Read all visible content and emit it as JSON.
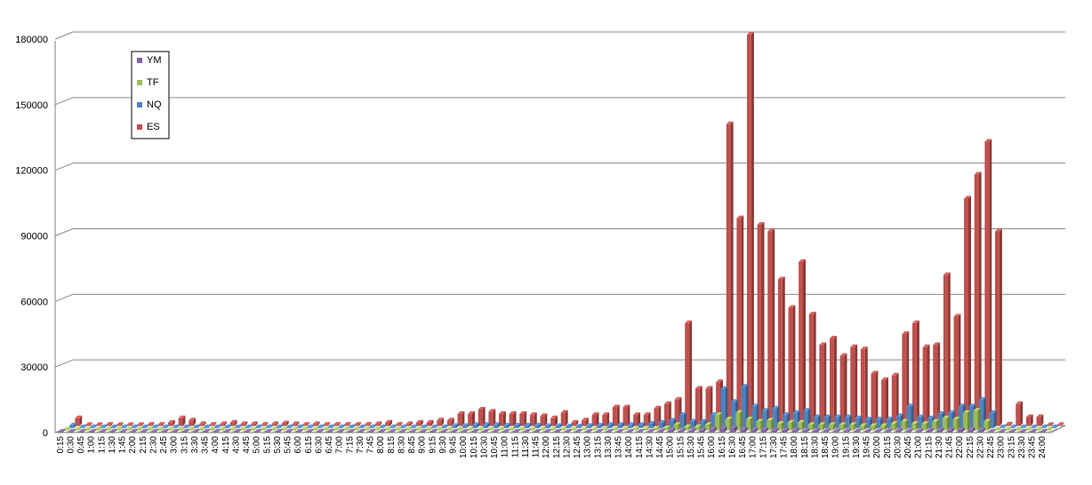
{
  "chart_data": {
    "type": "bar",
    "title": "",
    "xlabel": "",
    "ylabel": "",
    "ylim": [
      0,
      180000
    ],
    "yticks": [
      0,
      30000,
      60000,
      90000,
      120000,
      150000,
      180000
    ],
    "grid": true,
    "legend_position": "top-left",
    "categories": [
      "0:15",
      "0:30",
      "0:45",
      "1:00",
      "1:15",
      "1:30",
      "1:45",
      "2:00",
      "2:15",
      "2:30",
      "2:45",
      "3:00",
      "3:15",
      "3:30",
      "3:45",
      "4:00",
      "4:15",
      "4:30",
      "4:45",
      "5:00",
      "5:15",
      "5:30",
      "5:45",
      "6:00",
      "6:15",
      "6:30",
      "6:45",
      "7:00",
      "7:15",
      "7:30",
      "7:45",
      "8:00",
      "8:15",
      "8:30",
      "8:45",
      "9:00",
      "9:15",
      "9:30",
      "9:45",
      "10:00",
      "10:15",
      "10:30",
      "10:45",
      "11:00",
      "11:15",
      "11:30",
      "11:45",
      "12:00",
      "12:15",
      "12:30",
      "12:45",
      "13:00",
      "13:15",
      "13:30",
      "13:45",
      "14:00",
      "14:15",
      "14:30",
      "14:45",
      "15:00",
      "15:15",
      "15:30",
      "15:45",
      "16:00",
      "16:15",
      "16:30",
      "16:45",
      "17:00",
      "17:15",
      "17:30",
      "17:45",
      "18:00",
      "18:15",
      "18:30",
      "18:45",
      "19:00",
      "19:15",
      "19:30",
      "19:45",
      "20:00",
      "20:15",
      "20:30",
      "20:45",
      "21:00",
      "21:15",
      "21:30",
      "21:45",
      "22:00",
      "22:15",
      "22:30",
      "22:45",
      "23:00",
      "23:15",
      "23:30",
      "23:45",
      "24:00"
    ],
    "series": [
      {
        "name": "YM",
        "color": "#8064A2",
        "values": [
          300,
          50,
          50,
          50,
          50,
          50,
          50,
          50,
          50,
          50,
          100,
          100,
          50,
          50,
          50,
          100,
          50,
          50,
          50,
          100,
          100,
          50,
          50,
          50,
          50,
          50,
          50,
          50,
          50,
          50,
          50,
          50,
          50,
          50,
          50,
          100,
          100,
          200,
          200,
          300,
          300,
          300,
          300,
          300,
          300,
          300,
          300,
          300,
          200,
          200,
          200,
          300,
          400,
          400,
          400,
          400,
          400,
          500,
          600,
          1000,
          800,
          800,
          1000,
          1500,
          1800,
          2000,
          1500,
          1200,
          1200,
          1000,
          1000,
          1000,
          800,
          800,
          700,
          700,
          700,
          600,
          600,
          600,
          700,
          800,
          700,
          700,
          800,
          1000,
          1000,
          1200,
          1200,
          1000,
          50,
          50,
          50,
          50,
          50,
          50
        ]
      },
      {
        "name": "TF",
        "color": "#9BBB59",
        "values": [
          300,
          50,
          50,
          50,
          50,
          50,
          50,
          50,
          50,
          50,
          100,
          100,
          50,
          50,
          50,
          100,
          50,
          50,
          50,
          100,
          100,
          50,
          50,
          50,
          50,
          50,
          50,
          50,
          50,
          50,
          50,
          50,
          50,
          50,
          100,
          100,
          200,
          300,
          300,
          400,
          400,
          400,
          400,
          400,
          400,
          400,
          300,
          300,
          200,
          200,
          300,
          400,
          500,
          500,
          500,
          500,
          600,
          800,
          1000,
          2500,
          1500,
          1500,
          2500,
          7000,
          5000,
          8000,
          5000,
          4000,
          4500,
          3000,
          3500,
          3500,
          2500,
          2500,
          2500,
          2500,
          2500,
          2000,
          2000,
          2000,
          3000,
          4000,
          3000,
          3000,
          4000,
          5500,
          5000,
          8000,
          9000,
          4000,
          50,
          50,
          50,
          50,
          50,
          50
        ]
      },
      {
        "name": "NQ",
        "color": "#4F81BD",
        "values": [
          1200,
          100,
          100,
          100,
          100,
          100,
          100,
          100,
          100,
          200,
          300,
          300,
          100,
          100,
          100,
          300,
          100,
          100,
          100,
          300,
          300,
          100,
          100,
          100,
          100,
          100,
          100,
          100,
          100,
          100,
          100,
          100,
          100,
          200,
          300,
          300,
          500,
          1000,
          1000,
          1500,
          1500,
          1500,
          1200,
          1200,
          1200,
          1200,
          1000,
          1000,
          800,
          800,
          1000,
          1200,
          1500,
          1500,
          1500,
          1500,
          2000,
          2500,
          3500,
          6000,
          3000,
          3000,
          6000,
          18000,
          12000,
          19000,
          10000,
          8000,
          9000,
          6000,
          7000,
          8000,
          5000,
          5000,
          5000,
          5000,
          4500,
          4000,
          4000,
          4000,
          5500,
          10000,
          5000,
          4500,
          6500,
          7000,
          10000,
          10000,
          13000,
          7000,
          100,
          100,
          100,
          100,
          100,
          100
        ]
      },
      {
        "name": "ES",
        "color": "#C0504D",
        "values": [
          3500,
          200,
          200,
          500,
          300,
          200,
          200,
          500,
          500,
          1500,
          3500,
          2500,
          800,
          500,
          800,
          1500,
          800,
          800,
          500,
          800,
          1200,
          800,
          500,
          800,
          500,
          500,
          500,
          500,
          500,
          800,
          1500,
          500,
          800,
          1500,
          1500,
          2500,
          2500,
          5500,
          5500,
          7500,
          6500,
          5500,
          5500,
          5500,
          5000,
          4500,
          3500,
          6000,
          1500,
          2500,
          5000,
          5000,
          8500,
          8500,
          5000,
          5000,
          8000,
          10000,
          12000,
          47000,
          17000,
          17000,
          20000,
          138000,
          95000,
          179000,
          92000,
          89000,
          67000,
          54000,
          75000,
          51000,
          37000,
          40000,
          32000,
          36000,
          35000,
          24000,
          21000,
          23000,
          42000,
          47000,
          36000,
          37000,
          69000,
          50000,
          104000,
          115000,
          130000,
          89000,
          600,
          10000,
          4000,
          4000,
          200,
          200
        ]
      }
    ]
  }
}
